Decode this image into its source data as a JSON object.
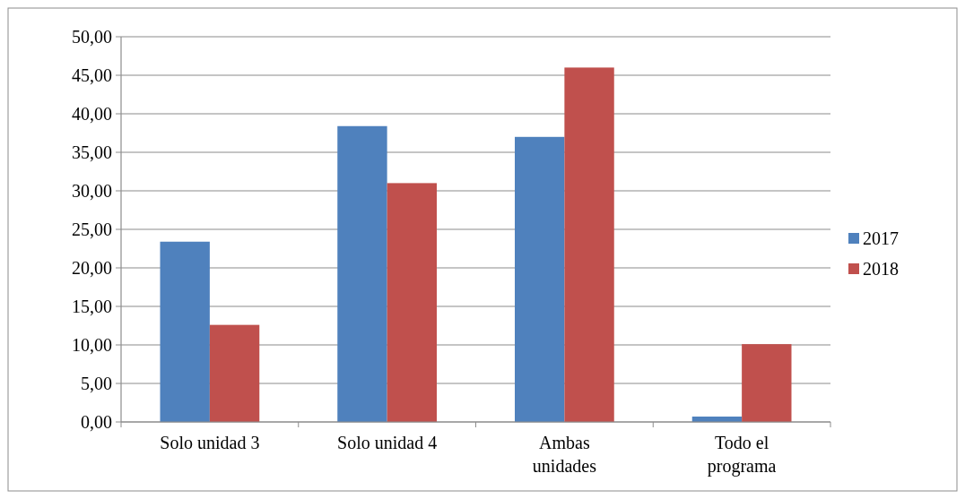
{
  "chart_data": {
    "type": "bar",
    "categories": [
      "Solo unidad 3",
      "Solo unidad 4",
      "Ambas unidades",
      "Todo el programa"
    ],
    "series": [
      {
        "name": "2017",
        "color": "#4f81bd",
        "values": [
          23.4,
          38.4,
          37.0,
          0.7
        ]
      },
      {
        "name": "2018",
        "color": "#c0504d",
        "values": [
          12.6,
          31.0,
          46.0,
          10.1
        ]
      }
    ],
    "ylim": [
      0,
      50
    ],
    "yticks": [
      {
        "value": 0,
        "label": "0,00"
      },
      {
        "value": 5,
        "label": "5,00"
      },
      {
        "value": 10,
        "label": "10,00"
      },
      {
        "value": 15,
        "label": "15,00"
      },
      {
        "value": 20,
        "label": "20,00"
      },
      {
        "value": 25,
        "label": "25,00"
      },
      {
        "value": 30,
        "label": "30,00"
      },
      {
        "value": 35,
        "label": "35,00"
      },
      {
        "value": 40,
        "label": "40,00"
      },
      {
        "value": 45,
        "label": "45,00"
      },
      {
        "value": 50,
        "label": "50,00"
      }
    ],
    "grid": "y",
    "legend": "right"
  }
}
